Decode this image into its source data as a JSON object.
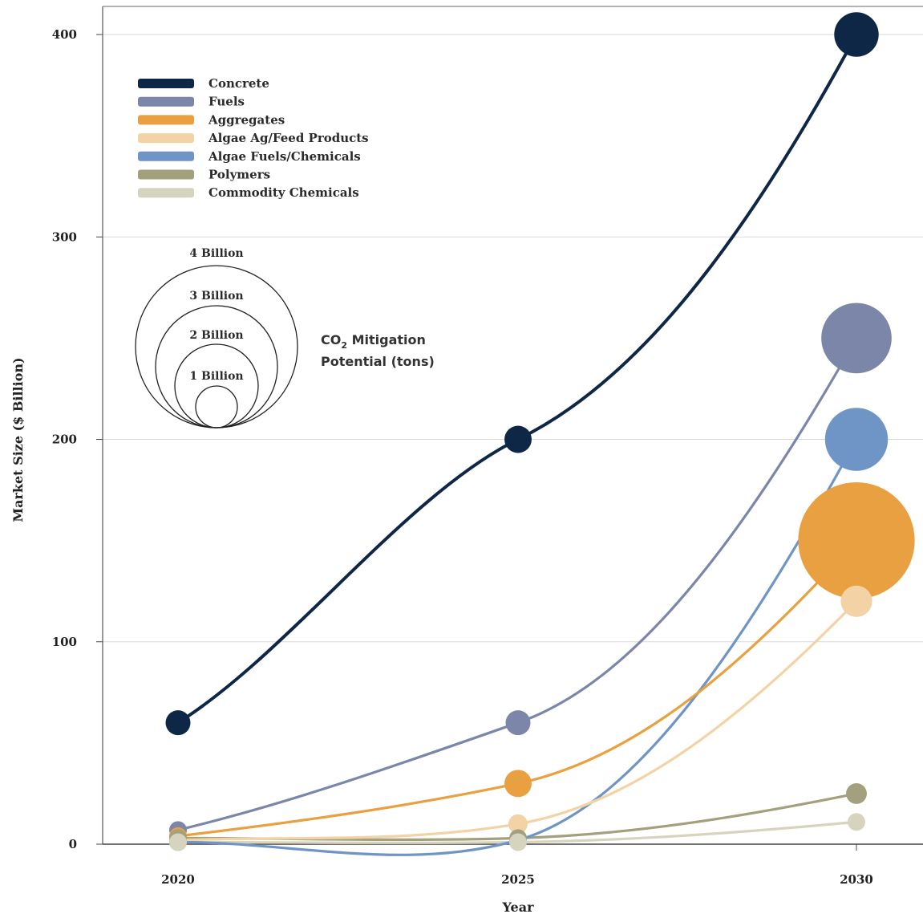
{
  "chart_data": {
    "type": "line",
    "title": "",
    "xlabel": "Year",
    "ylabel": "Market Size ($ Billion)",
    "categories": [
      "2020",
      "2025",
      "2030"
    ],
    "ylim": [
      0,
      415
    ],
    "yticks": [
      "0",
      "100",
      "200",
      "300",
      "400"
    ],
    "grid": true,
    "legend_position": "top-left",
    "series": [
      {
        "name": "Concrete",
        "color": "#0f2747",
        "values": [
          60,
          200,
          400
        ],
        "mitigation_billion_tons": [
          0.1,
          0.12,
          0.32
        ]
      },
      {
        "name": "Fuels",
        "color": "#7b86a8",
        "values": [
          7,
          60,
          250
        ],
        "mitigation_billion_tons": [
          0.05,
          0.1,
          0.8
        ]
      },
      {
        "name": "Aggregates",
        "color": "#e8a040",
        "values": [
          4,
          30,
          150
        ],
        "mitigation_billion_tons": [
          0.05,
          0.12,
          2.2
        ]
      },
      {
        "name": "Algae Ag/Feed Products",
        "color": "#f3d3a6",
        "values": [
          2,
          10,
          120
        ],
        "mitigation_billion_tons": [
          0.04,
          0.06,
          0.16
        ]
      },
      {
        "name": "Algae Fuels/Chemicals",
        "color": "#6f94c6",
        "values": [
          1,
          2,
          200
        ],
        "mitigation_billion_tons": [
          0.03,
          0.04,
          0.64
        ]
      },
      {
        "name": "Polymers",
        "color": "#a3a07e",
        "values": [
          3,
          3,
          25
        ],
        "mitigation_billion_tons": [
          0.04,
          0.04,
          0.07
        ]
      },
      {
        "name": "Commodity Chemicals",
        "color": "#d6d4be",
        "values": [
          1,
          1,
          11
        ],
        "mitigation_billion_tons": [
          0.04,
          0.04,
          0.05
        ]
      }
    ],
    "size_legend": {
      "labels": [
        "4 Billion",
        "3 Billion",
        "2 Billion",
        "1 Billion"
      ],
      "title_line1": "CO",
      "title_sub": "2",
      "title_line1_rest": " Mitigation",
      "title_line2": "Potential (tons)"
    }
  }
}
